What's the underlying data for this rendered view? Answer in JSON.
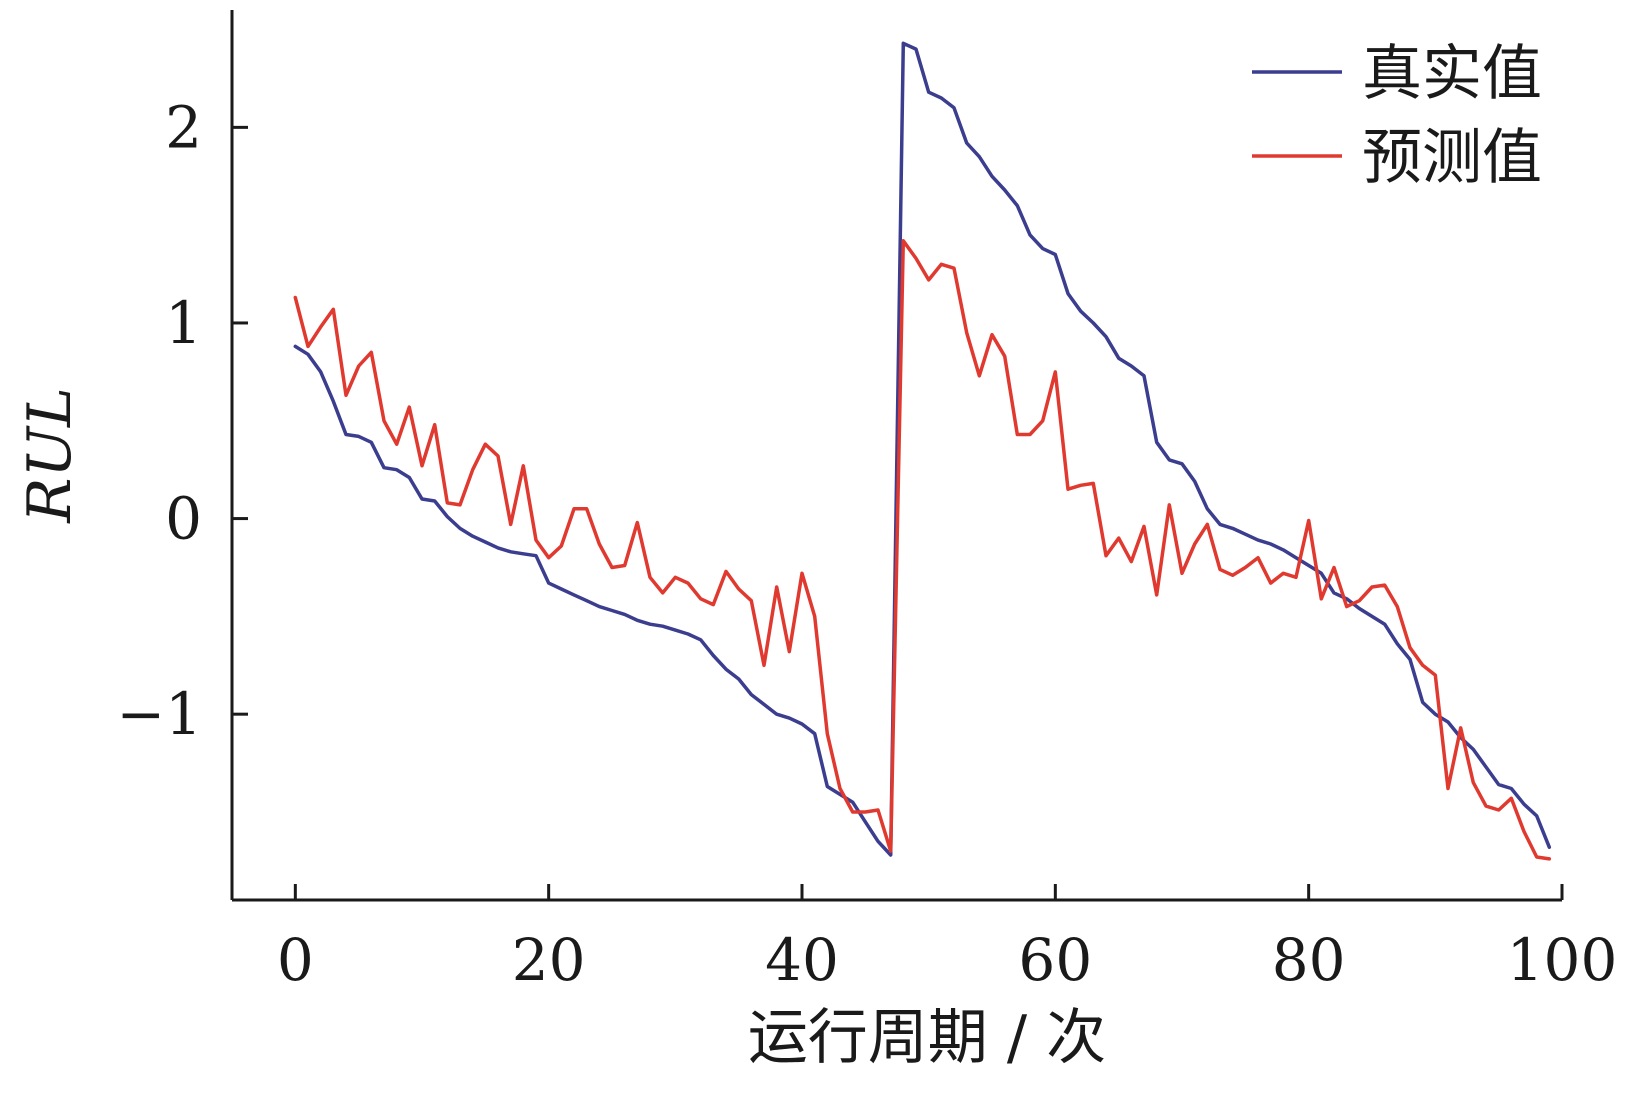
{
  "chart_data": {
    "type": "line",
    "xlabel": "运行周期 / 次",
    "ylabel": "RUL",
    "xlim": [
      -5,
      100
    ],
    "ylim": [
      -1.95,
      2.6
    ],
    "xticks": [
      0,
      20,
      40,
      60,
      80,
      100
    ],
    "yticks": [
      -1,
      0,
      1,
      2
    ],
    "ytick_labels": [
      "−1",
      "0",
      "1",
      "2"
    ],
    "legend_position": "top-right",
    "grid": false,
    "series": [
      {
        "name": "真实值",
        "color": "#3b3d8f",
        "x": [
          0,
          1,
          2,
          3,
          4,
          5,
          6,
          7,
          8,
          9,
          10,
          11,
          12,
          13,
          14,
          15,
          16,
          17,
          18,
          19,
          20,
          21,
          22,
          23,
          24,
          25,
          26,
          27,
          28,
          29,
          30,
          31,
          32,
          33,
          34,
          35,
          36,
          37,
          38,
          39,
          40,
          41,
          42,
          43,
          44,
          45,
          46,
          47,
          48,
          49,
          50,
          51,
          52,
          53,
          54,
          55,
          56,
          57,
          58,
          59,
          60,
          61,
          62,
          63,
          64,
          65,
          66,
          67,
          68,
          69,
          70,
          71,
          72,
          73,
          74,
          75,
          76,
          77,
          78,
          79,
          80,
          81,
          82,
          83,
          84,
          85,
          86,
          87,
          88,
          89,
          90,
          91,
          92,
          93,
          94,
          95,
          96,
          97,
          98,
          99
        ],
        "y": [
          0.88,
          0.84,
          0.75,
          0.6,
          0.43,
          0.42,
          0.39,
          0.26,
          0.25,
          0.21,
          0.1,
          0.09,
          0.01,
          -0.05,
          -0.09,
          -0.12,
          -0.15,
          -0.17,
          -0.18,
          -0.19,
          -0.33,
          -0.36,
          -0.39,
          -0.42,
          -0.45,
          -0.47,
          -0.49,
          -0.52,
          -0.54,
          -0.55,
          -0.57,
          -0.59,
          -0.62,
          -0.7,
          -0.77,
          -0.82,
          -0.9,
          -0.95,
          -1.0,
          -1.02,
          -1.05,
          -1.1,
          -1.37,
          -1.41,
          -1.45,
          -1.55,
          -1.65,
          -1.72,
          2.43,
          2.4,
          2.18,
          2.15,
          2.1,
          1.92,
          1.85,
          1.75,
          1.68,
          1.6,
          1.45,
          1.38,
          1.35,
          1.15,
          1.06,
          1.0,
          0.93,
          0.82,
          0.78,
          0.73,
          0.39,
          0.3,
          0.28,
          0.19,
          0.05,
          -0.03,
          -0.05,
          -0.08,
          -0.11,
          -0.13,
          -0.16,
          -0.2,
          -0.24,
          -0.28,
          -0.38,
          -0.41,
          -0.46,
          -0.5,
          -0.54,
          -0.64,
          -0.72,
          -0.94,
          -1.0,
          -1.04,
          -1.12,
          -1.18,
          -1.27,
          -1.36,
          -1.38,
          -1.46,
          -1.52,
          -1.68
        ]
      },
      {
        "name": "预测值",
        "color": "#e03a30",
        "x": [
          0,
          1,
          2,
          3,
          4,
          5,
          6,
          7,
          8,
          9,
          10,
          11,
          12,
          13,
          14,
          15,
          16,
          17,
          18,
          19,
          20,
          21,
          22,
          23,
          24,
          25,
          26,
          27,
          28,
          29,
          30,
          31,
          32,
          33,
          34,
          35,
          36,
          37,
          38,
          39,
          40,
          41,
          42,
          43,
          44,
          45,
          46,
          47,
          48,
          49,
          50,
          51,
          52,
          53,
          54,
          55,
          56,
          57,
          58,
          59,
          60,
          61,
          62,
          63,
          64,
          65,
          66,
          67,
          68,
          69,
          70,
          71,
          72,
          73,
          74,
          75,
          76,
          77,
          78,
          79,
          80,
          81,
          82,
          83,
          84,
          85,
          86,
          87,
          88,
          89,
          90,
          91,
          92,
          93,
          94,
          95,
          96,
          97,
          98,
          99
        ],
        "y": [
          1.13,
          0.88,
          0.98,
          1.07,
          0.63,
          0.78,
          0.85,
          0.5,
          0.38,
          0.57,
          0.27,
          0.48,
          0.08,
          0.07,
          0.25,
          0.38,
          0.32,
          -0.03,
          0.27,
          -0.11,
          -0.2,
          -0.14,
          0.05,
          0.05,
          -0.13,
          -0.25,
          -0.24,
          -0.02,
          -0.3,
          -0.38,
          -0.3,
          -0.33,
          -0.41,
          -0.44,
          -0.27,
          -0.36,
          -0.42,
          -0.75,
          -0.35,
          -0.68,
          -0.28,
          -0.5,
          -1.1,
          -1.38,
          -1.5,
          -1.5,
          -1.49,
          -1.7,
          1.42,
          1.33,
          1.22,
          1.3,
          1.28,
          0.95,
          0.73,
          0.94,
          0.83,
          0.43,
          0.43,
          0.5,
          0.75,
          0.15,
          0.17,
          0.18,
          -0.19,
          -0.1,
          -0.22,
          -0.04,
          -0.39,
          0.07,
          -0.28,
          -0.13,
          -0.03,
          -0.26,
          -0.29,
          -0.25,
          -0.2,
          -0.33,
          -0.28,
          -0.3,
          -0.01,
          -0.41,
          -0.25,
          -0.45,
          -0.42,
          -0.35,
          -0.34,
          -0.45,
          -0.66,
          -0.75,
          -0.8,
          -1.38,
          -1.07,
          -1.35,
          -1.47,
          -1.49,
          -1.43,
          -1.6,
          -1.73,
          -1.74
        ]
      }
    ]
  }
}
